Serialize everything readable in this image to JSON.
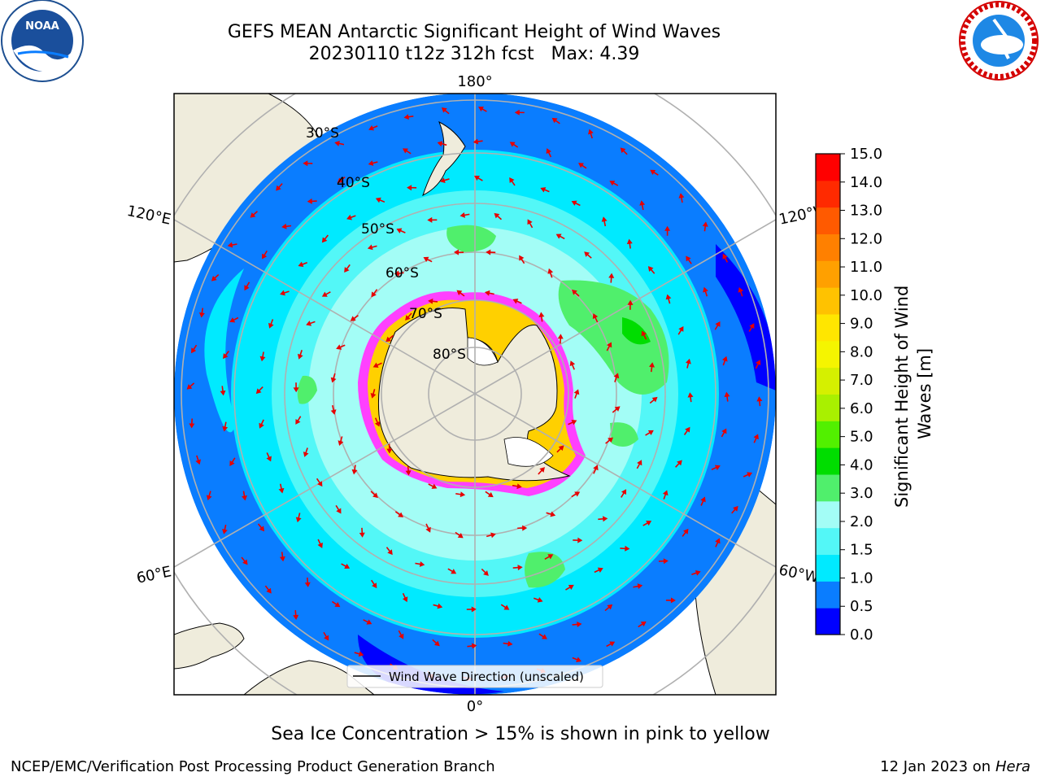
{
  "header": {
    "title_line1": "GEFS MEAN Antarctic Significant Height of Wind Waves",
    "title_line2": "20230110 t12z 312h fcst   Max: 4.39"
  },
  "logos": {
    "left": "NOAA",
    "right": "NATIONAL WEATHER SERVICE"
  },
  "map": {
    "lon_labels": {
      "top": "180°",
      "bottom": "0°",
      "left_upper": "120°E",
      "left_lower": "60°E",
      "right_upper": "120°W",
      "right_lower": "60°W"
    },
    "lat_labels": [
      "30°S",
      "40°S",
      "50°S",
      "60°S",
      "70°S",
      "80°S"
    ],
    "legend_label": "Wind Wave Direction (unscaled)",
    "colors": {
      "land": "#efecdc",
      "ocean_deep": "#0000ff",
      "wave_0_5_1_0": "#0a7dff",
      "wave_1_0_1_5": "#00eaff",
      "wave_1_5_2_0": "#53f7f7",
      "wave_2_0_3_0": "#a3fdf6",
      "wave_3_0_4_0": "#50ef6c",
      "wave_4_0_5_0": "#00dd00",
      "ice_edge": "#ff40ff",
      "arrow": "#e60000"
    }
  },
  "colorbar": {
    "label": "Significant Height of Wind Waves [m]",
    "ticks": [
      "0.0",
      "0.5",
      "1.0",
      "1.5",
      "2.0",
      "3.0",
      "4.0",
      "5.0",
      "6.0",
      "7.0",
      "8.0",
      "9.0",
      "10.0",
      "11.0",
      "12.0",
      "13.0",
      "14.0",
      "15.0"
    ],
    "colors": [
      "#0000ff",
      "#0a7dff",
      "#00eaff",
      "#53f7f7",
      "#a3fdf6",
      "#50ef6c",
      "#00dd00",
      "#52f000",
      "#a9f000",
      "#d5f000",
      "#f5f500",
      "#ffe600",
      "#ffc200",
      "#ffa000",
      "#ff8000",
      "#ff5a00",
      "#ff2a00",
      "#ff0000"
    ]
  },
  "caption": "Sea Ice Concentration > 15% is shown in pink to yellow",
  "footer": {
    "left": "NCEP/EMC/Verification Post Processing Product Generation Branch",
    "right_prefix": "12 Jan 2023 on ",
    "right_host": "Hera"
  }
}
